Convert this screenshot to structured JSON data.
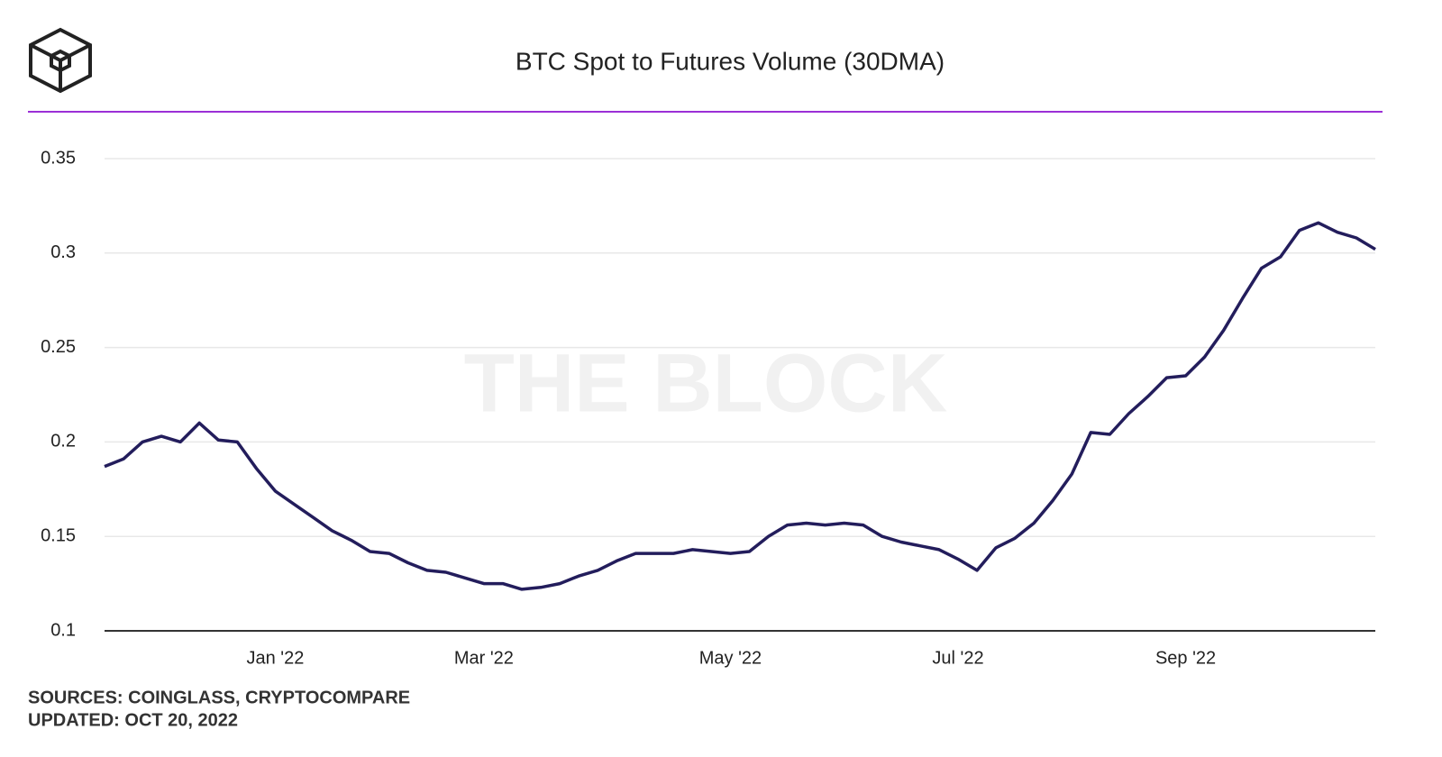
{
  "chart_data": {
    "type": "line",
    "title": "BTC Spot to Futures Volume (30DMA)",
    "watermark": "THE BLOCK",
    "sources": "SOURCES: COINGLASS, CRYPTOCOMPARE",
    "updated": "UPDATED: OCT 20, 2022",
    "categories": [
      null,
      null,
      null,
      null,
      null,
      null,
      null,
      null,
      null,
      "Jan '22",
      null,
      null,
      null,
      null,
      null,
      null,
      null,
      null,
      null,
      null,
      "Mar '22",
      null,
      null,
      null,
      null,
      null,
      null,
      null,
      null,
      null,
      null,
      null,
      null,
      "May '22",
      null,
      null,
      null,
      null,
      null,
      null,
      null,
      null,
      null,
      null,
      null,
      "Jul '22",
      null,
      null,
      null,
      null,
      null,
      null,
      null,
      null,
      null,
      null,
      null,
      "Sep '22",
      null,
      null,
      null,
      null,
      null,
      null,
      null,
      null,
      null,
      null
    ],
    "values": [
      0.187,
      0.191,
      0.2,
      0.203,
      0.2,
      0.21,
      0.201,
      0.2,
      0.186,
      0.174,
      0.167,
      0.16,
      0.153,
      0.148,
      0.142,
      0.141,
      0.136,
      0.132,
      0.131,
      0.128,
      0.125,
      0.125,
      0.122,
      0.123,
      0.125,
      0.129,
      0.132,
      0.137,
      0.141,
      0.141,
      0.141,
      0.143,
      0.142,
      0.141,
      0.142,
      0.15,
      0.156,
      0.157,
      0.156,
      0.157,
      0.156,
      0.15,
      0.147,
      0.145,
      0.143,
      0.138,
      0.132,
      0.144,
      0.149,
      0.157,
      0.169,
      0.183,
      0.205,
      0.204,
      0.215,
      0.224,
      0.234,
      0.235,
      0.245,
      0.259,
      0.276,
      0.292,
      0.298,
      0.312,
      0.316,
      0.311,
      0.308,
      0.302
    ],
    "color": "#231d5c",
    "ylim": [
      0.1,
      0.35
    ],
    "yticks": [
      0.1,
      0.15,
      0.2,
      0.25,
      0.3,
      0.35
    ],
    "grid": true
  }
}
